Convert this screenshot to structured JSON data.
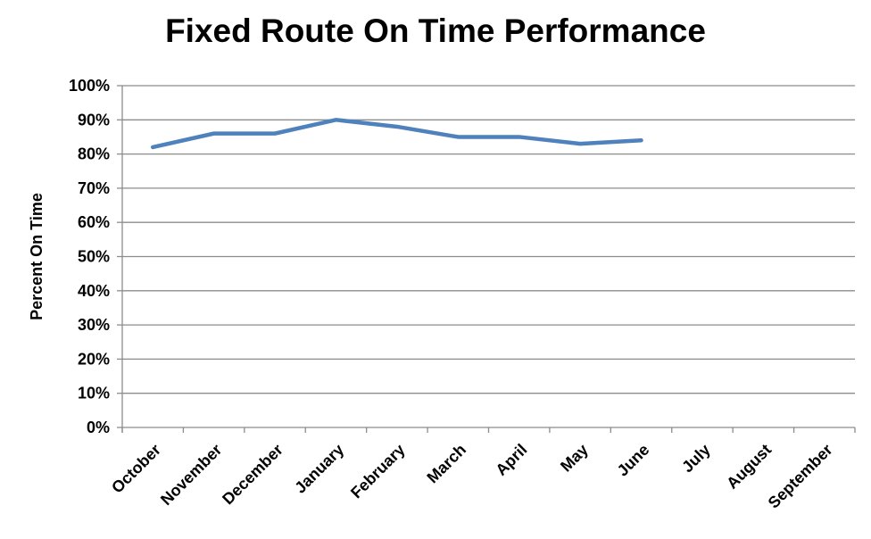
{
  "chart_data": {
    "type": "line",
    "title": "Fixed Route On Time Performance",
    "xlabel": "",
    "ylabel": "Percent On Time",
    "categories": [
      "October",
      "November",
      "December",
      "January",
      "February",
      "March",
      "April",
      "May",
      "June",
      "July",
      "August",
      "September"
    ],
    "series": [
      {
        "values": [
          82,
          86,
          86,
          90,
          88,
          85,
          85,
          83,
          84,
          null,
          null,
          null
        ],
        "color": "#4F81BD"
      }
    ],
    "ylim": [
      0,
      100
    ],
    "yticks": [
      0,
      10,
      20,
      30,
      40,
      50,
      60,
      70,
      80,
      90,
      100
    ],
    "ytick_labels": [
      "0%",
      "10%",
      "20%",
      "30%",
      "40%",
      "50%",
      "60%",
      "70%",
      "80%",
      "90%",
      "100%"
    ],
    "grid": true,
    "legend": "none"
  }
}
